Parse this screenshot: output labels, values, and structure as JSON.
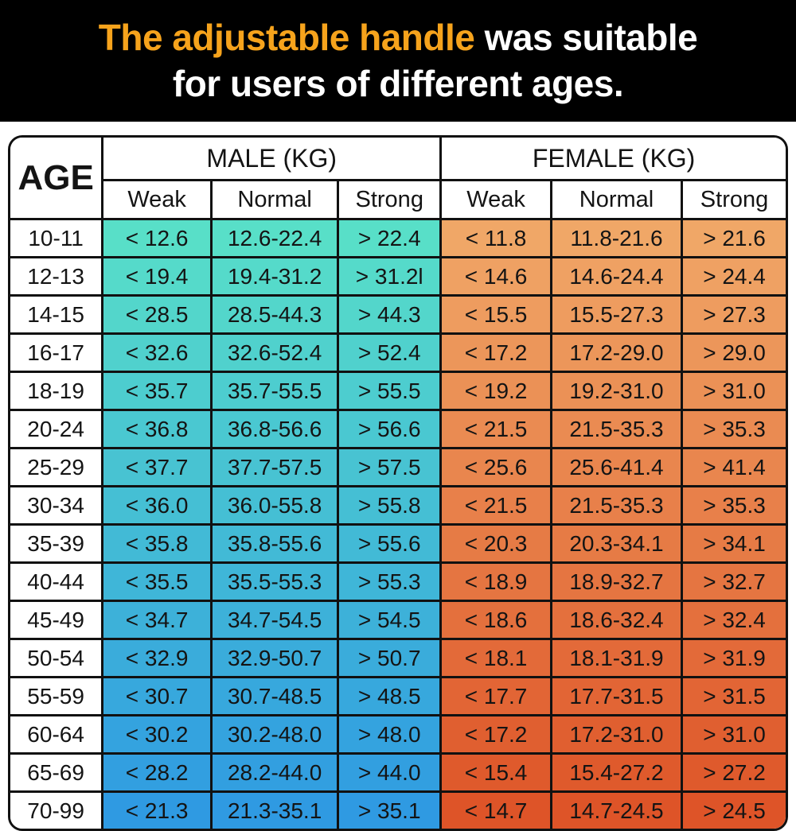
{
  "banner": {
    "highlight": "The adjustable handle",
    "rest": " was suitable",
    "line2": "for users of different ages.",
    "bg_color": "#000000",
    "highlight_color": "#F6A31C",
    "text_color": "#FFFFFF"
  },
  "chart_data": {
    "type": "table",
    "title": "The adjustable handle was suitable for users of different ages.",
    "corner_header": "AGE",
    "unit": "KG",
    "groups": [
      {
        "label": "MALE (KG)",
        "subcolumns": [
          "Weak",
          "Normal",
          "Strong"
        ],
        "gradient_top": "#58DFC8",
        "gradient_bottom": "#2F9AE2"
      },
      {
        "label": "FEMALE (KG)",
        "subcolumns": [
          "Weak",
          "Normal",
          "Strong"
        ],
        "gradient_top": "#F0A767",
        "gradient_bottom": "#DE5428"
      }
    ],
    "rows": [
      {
        "age": "10-11",
        "values": [
          "< 12.6",
          "12.6-22.4",
          "> 22.4",
          "< 11.8",
          "11.8-21.6",
          "> 21.6"
        ]
      },
      {
        "age": "12-13",
        "values": [
          "< 19.4",
          "19.4-31.2",
          "> 31.2l",
          "< 14.6",
          "14.6-24.4",
          "> 24.4"
        ]
      },
      {
        "age": "14-15",
        "values": [
          "< 28.5",
          "28.5-44.3",
          "> 44.3",
          "< 15.5",
          "15.5-27.3",
          "> 27.3"
        ]
      },
      {
        "age": "16-17",
        "values": [
          "< 32.6",
          "32.6-52.4",
          "> 52.4",
          "< 17.2",
          "17.2-29.0",
          "> 29.0"
        ]
      },
      {
        "age": "18-19",
        "values": [
          "< 35.7",
          "35.7-55.5",
          "> 55.5",
          "< 19.2",
          "19.2-31.0",
          "> 31.0"
        ]
      },
      {
        "age": "20-24",
        "values": [
          "< 36.8",
          "36.8-56.6",
          "> 56.6",
          "< 21.5",
          "21.5-35.3",
          "> 35.3"
        ]
      },
      {
        "age": "25-29",
        "values": [
          "< 37.7",
          "37.7-57.5",
          "> 57.5",
          "< 25.6",
          "25.6-41.4",
          "> 41.4"
        ]
      },
      {
        "age": "30-34",
        "values": [
          "< 36.0",
          "36.0-55.8",
          "> 55.8",
          "< 21.5",
          "21.5-35.3",
          "> 35.3"
        ]
      },
      {
        "age": "35-39",
        "values": [
          "< 35.8",
          "35.8-55.6",
          "> 55.6",
          "< 20.3",
          "20.3-34.1",
          "> 34.1"
        ]
      },
      {
        "age": "40-44",
        "values": [
          "< 35.5",
          "35.5-55.3",
          "> 55.3",
          "< 18.9",
          "18.9-32.7",
          "> 32.7"
        ]
      },
      {
        "age": "45-49",
        "values": [
          "< 34.7",
          "34.7-54.5",
          "> 54.5",
          "< 18.6",
          "18.6-32.4",
          "> 32.4"
        ]
      },
      {
        "age": "50-54",
        "values": [
          "< 32.9",
          "32.9-50.7",
          "> 50.7",
          "< 18.1",
          "18.1-31.9",
          "> 31.9"
        ]
      },
      {
        "age": "55-59",
        "values": [
          "< 30.7",
          "30.7-48.5",
          "> 48.5",
          "< 17.7",
          "17.7-31.5",
          "> 31.5"
        ]
      },
      {
        "age": "60-64",
        "values": [
          "< 30.2",
          "30.2-48.0",
          "> 48.0",
          "< 17.2",
          "17.2-31.0",
          "> 31.0"
        ]
      },
      {
        "age": "65-69",
        "values": [
          "< 28.2",
          "28.2-44.0",
          "> 44.0",
          "< 15.4",
          "15.4-27.2",
          "> 27.2"
        ]
      },
      {
        "age": "70-99",
        "values": [
          "< 21.3",
          "21.3-35.1",
          "> 35.1",
          "< 14.7",
          "14.7-24.5",
          "> 24.5"
        ]
      }
    ]
  }
}
